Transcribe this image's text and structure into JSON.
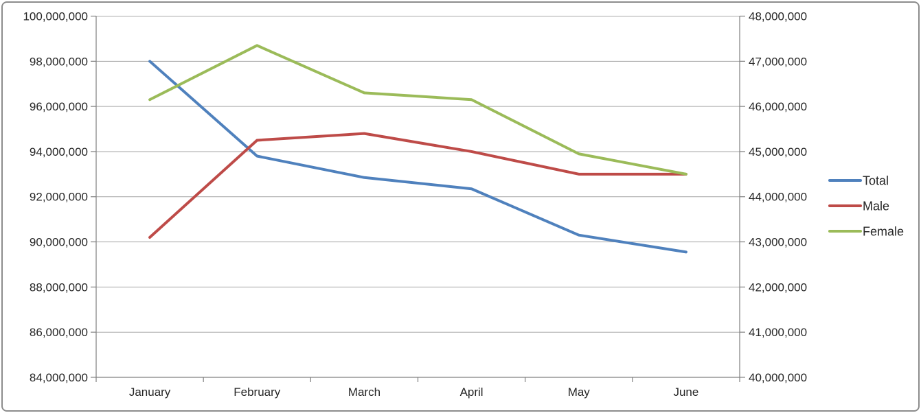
{
  "chart_data": {
    "type": "line",
    "title": "",
    "xlabel": "",
    "ylabel": "",
    "grid": true,
    "categories": [
      "January",
      "February",
      "March",
      "April",
      "May",
      "June"
    ],
    "series": [
      {
        "name": "Total",
        "axis": "left",
        "color": "#4F81BD",
        "values": [
          98000000,
          93800000,
          92850000,
          92350000,
          90300000,
          89550000
        ]
      },
      {
        "name": "Male",
        "axis": "right",
        "color": "#BE4B48",
        "values": [
          43100000,
          45250000,
          45400000,
          45000000,
          44500000,
          44500000
        ]
      },
      {
        "name": "Female",
        "axis": "right",
        "color": "#9BBB59",
        "values": [
          46150000,
          47350000,
          46300000,
          46150000,
          44950000,
          44500000
        ]
      }
    ],
    "left_axis": {
      "min": 84000000,
      "max": 100000000,
      "step": 2000000,
      "tick_labels": [
        "100,000,000",
        "98,000,000",
        "96,000,000",
        "94,000,000",
        "92,000,000",
        "90,000,000",
        "88,000,000",
        "86,000,000",
        "84,000,000"
      ]
    },
    "right_axis": {
      "min": 40000000,
      "max": 48000000,
      "step": 1000000,
      "tick_labels": [
        "48,000,000",
        "47,000,000",
        "46,000,000",
        "45,000,000",
        "44,000,000",
        "43,000,000",
        "42,000,000",
        "41,000,000",
        "40,000,000"
      ]
    },
    "legend": {
      "position": "right",
      "entries": [
        "Total",
        "Male",
        "Female"
      ]
    }
  },
  "colors": {
    "background": "#FFFFFF",
    "grid": "#A6A6A6",
    "axis": "#808080",
    "text": "#262626",
    "border": "#8C8C8C"
  }
}
